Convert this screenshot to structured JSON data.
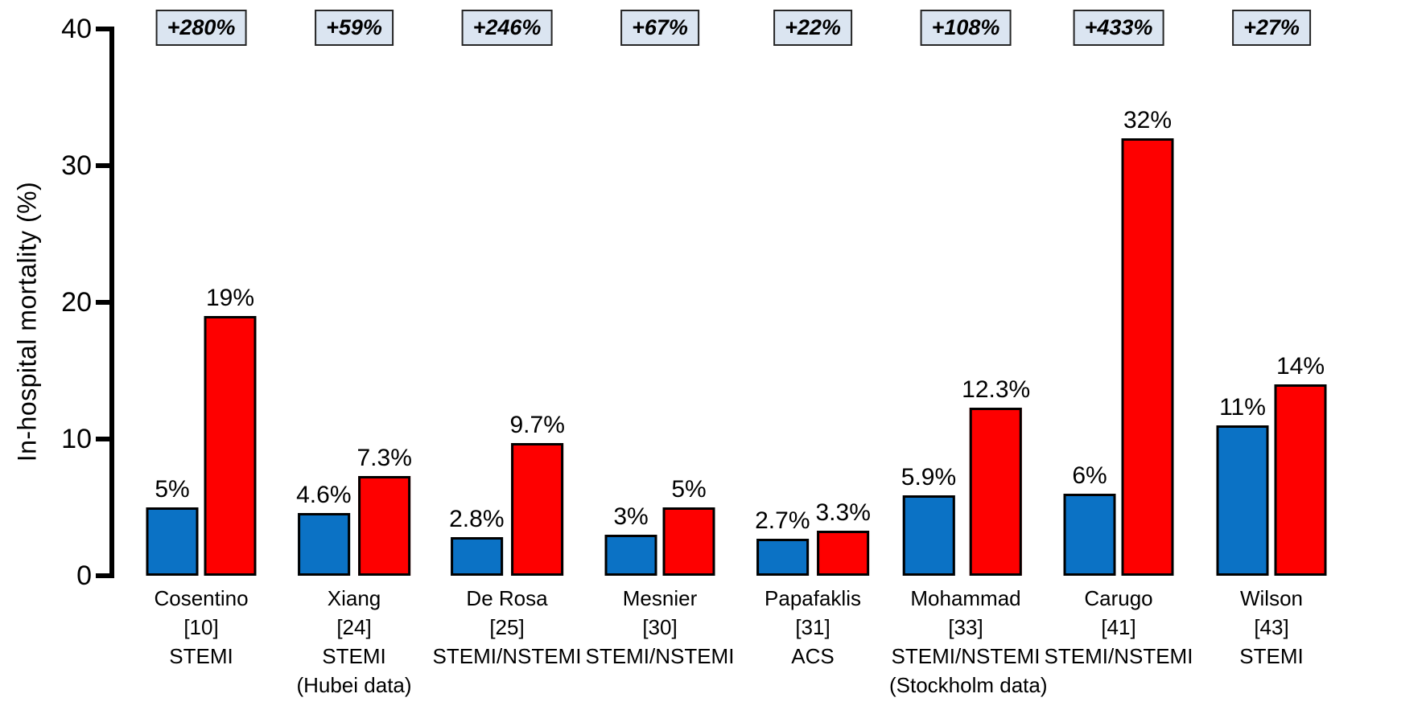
{
  "chart_data": {
    "type": "bar",
    "title": "",
    "xlabel": "",
    "ylabel": "In-hospital mortality (%)",
    "ylim": [
      0,
      40
    ],
    "yticks": [
      "0",
      "10",
      "20",
      "30",
      "40"
    ],
    "grid": false,
    "legend_position": "none",
    "colors": {
      "bar_blue": "#0B72C5",
      "bar_red": "#FE0000",
      "bar_border": "#000000",
      "annotation_box_fill": "#DBE5F1",
      "annotation_box_border": "#262626",
      "text": "#000000"
    },
    "series": [
      {
        "name": "blue",
        "color": "#0B72C5",
        "values": [
          5,
          4.6,
          2.8,
          3,
          2.7,
          5.9,
          6,
          11
        ]
      },
      {
        "name": "red",
        "color": "#FE0000",
        "values": [
          19,
          7.3,
          9.7,
          5,
          3.3,
          12.3,
          32,
          14
        ]
      }
    ],
    "categories": [
      {
        "label_lines": [
          "Cosentino",
          "[10]",
          "STEMI"
        ],
        "change_label": "+280%",
        "blue_value": 5,
        "red_value": 19,
        "blue_label": "5%",
        "red_label": "19%"
      },
      {
        "label_lines": [
          "Xiang",
          "[24]",
          "STEMI",
          "(Hubei data)"
        ],
        "change_label": "+59%",
        "blue_value": 4.6,
        "red_value": 7.3,
        "blue_label": "4.6%",
        "red_label": "7.3%"
      },
      {
        "label_lines": [
          "De Rosa",
          "[25]",
          "STEMI/NSTEMI"
        ],
        "change_label": "+246%",
        "blue_value": 2.8,
        "red_value": 9.7,
        "blue_label": "2.8%",
        "red_label": "9.7%"
      },
      {
        "label_lines": [
          "Mesnier",
          "[30]",
          "STEMI/NSTEMI"
        ],
        "change_label": "+67%",
        "blue_value": 3,
        "red_value": 5,
        "blue_label": "3%",
        "red_label": "5%"
      },
      {
        "label_lines": [
          "Papafaklis",
          "[31]",
          "ACS"
        ],
        "change_label": "+22%",
        "blue_value": 2.7,
        "red_value": 3.3,
        "blue_label": "2.7%",
        "red_label": "3.3%"
      },
      {
        "label_lines": [
          "Mohammad",
          "[33]",
          "STEMI/NSTEMI",
          "(Stockholm data)"
        ],
        "change_label": "+108%",
        "blue_value": 5.9,
        "red_value": 12.3,
        "blue_label": "5.9%",
        "red_label": "12.3%"
      },
      {
        "label_lines": [
          "Carugo",
          "[41]",
          "STEMI/NSTEMI"
        ],
        "change_label": "+433%",
        "blue_value": 6,
        "red_value": 32,
        "blue_label": "6%",
        "red_label": "32%"
      },
      {
        "label_lines": [
          "Wilson",
          "[43]",
          "STEMI"
        ],
        "change_label": "+27%",
        "blue_value": 11,
        "red_value": 14,
        "blue_label": "11%",
        "red_label": "14%"
      }
    ]
  }
}
